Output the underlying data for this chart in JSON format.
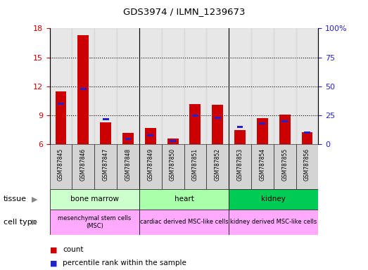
{
  "title": "GDS3974 / ILMN_1239673",
  "samples": [
    "GSM787845",
    "GSM787846",
    "GSM787847",
    "GSM787848",
    "GSM787849",
    "GSM787850",
    "GSM787851",
    "GSM787852",
    "GSM787853",
    "GSM787854",
    "GSM787855",
    "GSM787856"
  ],
  "red_values": [
    11.5,
    17.3,
    8.3,
    7.2,
    7.7,
    6.6,
    10.2,
    10.1,
    7.5,
    8.7,
    9.1,
    7.3
  ],
  "blue_pct": [
    35,
    48,
    22,
    5,
    8,
    3,
    25,
    23,
    15,
    18,
    20,
    10
  ],
  "ylim_left": [
    6,
    18
  ],
  "ylim_right": [
    0,
    100
  ],
  "yticks_left": [
    6,
    9,
    12,
    15,
    18
  ],
  "yticks_right": [
    0,
    25,
    50,
    75,
    100
  ],
  "bar_width": 0.5,
  "red_color": "#cc0000",
  "blue_color": "#2222cc",
  "bg_color": "#ffffff",
  "tick_color_left": "#cc0000",
  "tick_color_right": "#2222cc",
  "sample_bg_color": "#d4d4d4",
  "tissue_groups": [
    {
      "label": "bone marrow",
      "start": 0,
      "end": 4,
      "color": "#ccffcc"
    },
    {
      "label": "heart",
      "start": 4,
      "end": 8,
      "color": "#aaffaa"
    },
    {
      "label": "kidney",
      "start": 8,
      "end": 12,
      "color": "#00cc55"
    }
  ],
  "celltype_groups": [
    {
      "label": "mesenchymal stem cells\n(MSC)",
      "start": 0,
      "end": 4,
      "color": "#ffaaff"
    },
    {
      "label": "cardiac derived MSC-like cells",
      "start": 4,
      "end": 8,
      "color": "#ffaaff"
    },
    {
      "label": "kidney derived MSC-like cells",
      "start": 8,
      "end": 12,
      "color": "#ffaaff"
    }
  ]
}
